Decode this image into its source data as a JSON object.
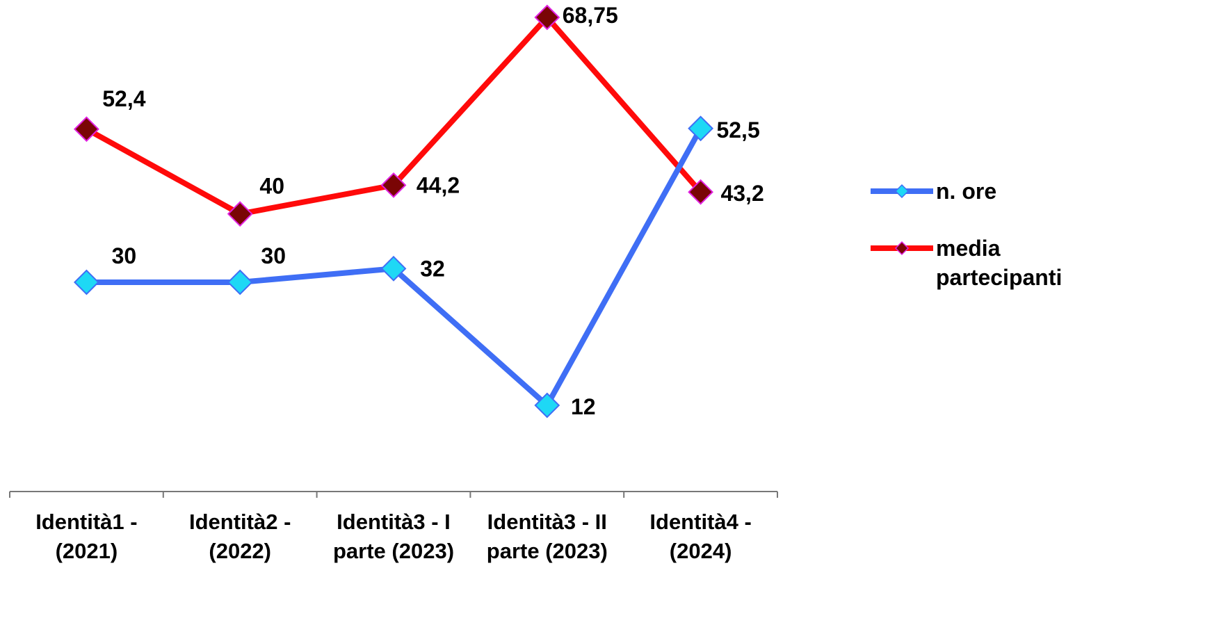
{
  "chart_data": {
    "type": "line",
    "title": "",
    "xlabel": "",
    "ylabel": "",
    "categories": [
      [
        "Identità1 -",
        "(2021)"
      ],
      [
        "Identità2 -",
        "(2022)"
      ],
      [
        "Identità3 - I",
        "parte (2023)"
      ],
      [
        "Identità3 - II",
        "parte (2023)"
      ],
      [
        "Identità4 -",
        "(2024)"
      ]
    ],
    "series": [
      {
        "name": "n. ore",
        "values": [
          30,
          30,
          32,
          12,
          52.5
        ],
        "labels": [
          "30",
          "30",
          "32",
          "12",
          "52,5"
        ],
        "line_color": "#3f6ef5",
        "marker_fill": "#1ed8f5",
        "marker_stroke": "#3f6ef5"
      },
      {
        "name": "media partecipanti",
        "legend_lines": [
          "media",
          "partecipanti"
        ],
        "values": [
          52.4,
          40,
          44.2,
          68.75,
          43.2
        ],
        "labels": [
          "52,4",
          "40",
          "44,2",
          "68,75",
          "43,2"
        ],
        "line_color": "#ff0a0a",
        "marker_fill": "#7a0505",
        "marker_stroke": "#e020e0"
      }
    ],
    "ylim": [
      0,
      70
    ],
    "grid": false,
    "y_axis_visible": false,
    "legend_position": "right"
  }
}
